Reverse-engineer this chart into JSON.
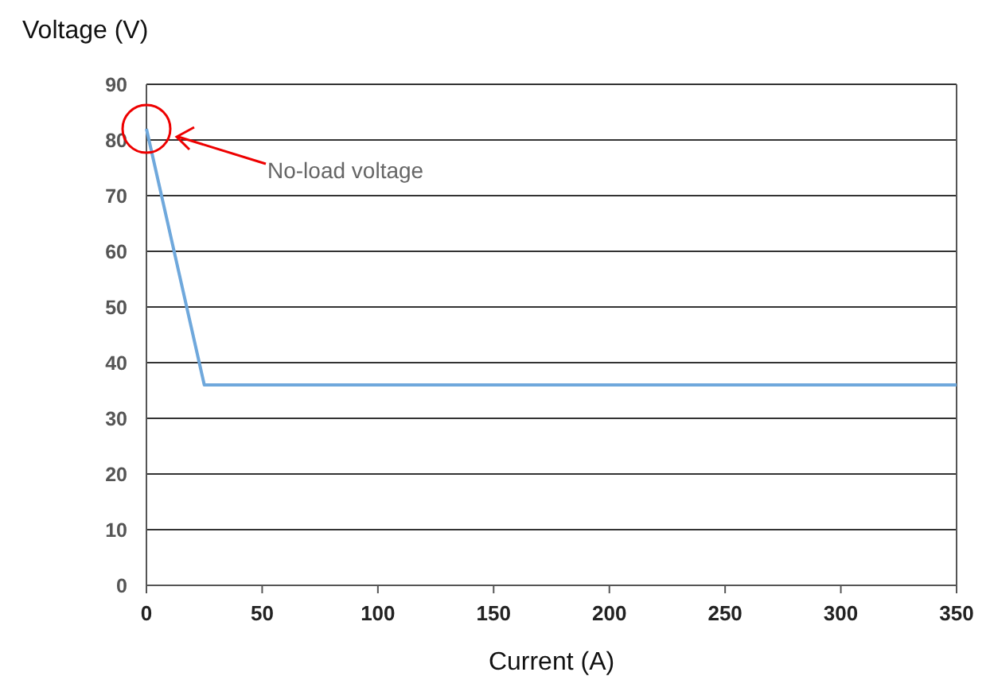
{
  "chart_data": {
    "type": "line",
    "xlabel": "Current (A)",
    "ylabel": "Voltage (V)",
    "x": [
      0,
      25,
      350
    ],
    "series": [
      {
        "color": "#6fa8dc",
        "values": [
          82,
          36,
          36
        ]
      }
    ],
    "xlim": [
      0,
      350
    ],
    "xticks": [
      0,
      50,
      100,
      150,
      200,
      250,
      300,
      350
    ],
    "ylim": [
      0,
      90
    ],
    "yticks": [
      0,
      10,
      20,
      30,
      40,
      50,
      60,
      70,
      80,
      90
    ],
    "grid": "y",
    "annotations": [
      "No-load voltage"
    ]
  }
}
